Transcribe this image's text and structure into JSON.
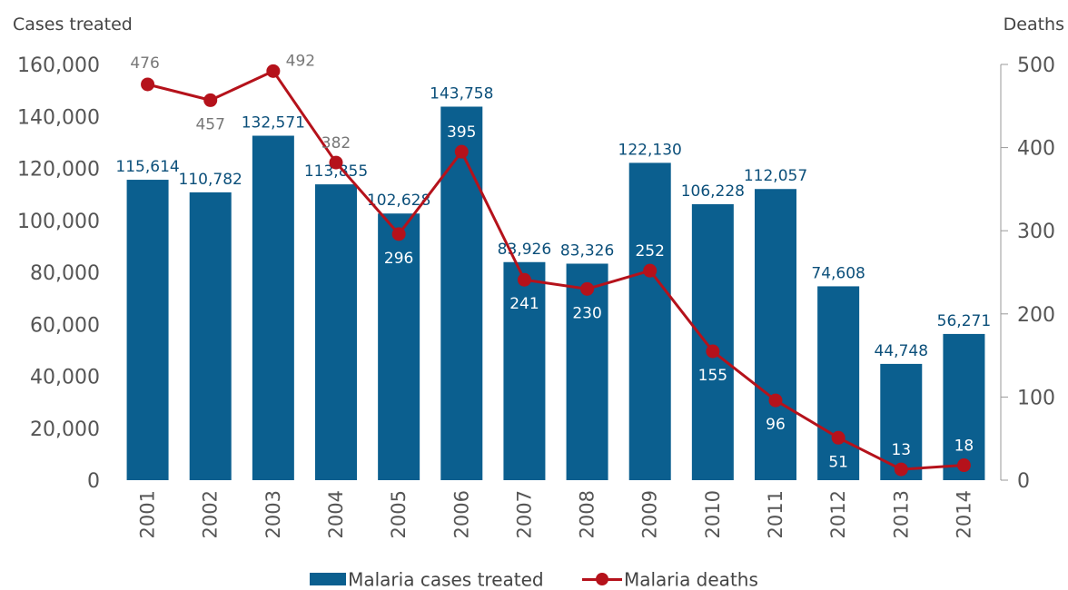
{
  "chart_data": {
    "type": "bar",
    "categories": [
      "2001",
      "2002",
      "2003",
      "2004",
      "2005",
      "2006",
      "2007",
      "2008",
      "2009",
      "2010",
      "2011",
      "2012",
      "2013",
      "2014"
    ],
    "series": [
      {
        "name": "Malaria cases treated",
        "type": "bar",
        "axis": "left",
        "values": [
          115614,
          110782,
          132571,
          113855,
          102628,
          143758,
          83926,
          83326,
          122130,
          106228,
          112057,
          74608,
          44748,
          56271
        ],
        "labels": [
          "115,614",
          "110,782",
          "132,571",
          "113,855",
          "102,628",
          "143,758",
          "83,926",
          "83,326",
          "122,130",
          "106,228",
          "112,057",
          "74,608",
          "44,748",
          "56,271"
        ]
      },
      {
        "name": "Malaria deaths",
        "type": "line",
        "axis": "right",
        "values": [
          476,
          457,
          492,
          382,
          296,
          395,
          241,
          230,
          252,
          155,
          96,
          51,
          13,
          18
        ],
        "labels": [
          "476",
          "457",
          "492",
          "382",
          "296",
          "395",
          "241",
          "230",
          "252",
          "155",
          "96",
          "51",
          "13",
          "18"
        ]
      }
    ],
    "y_left": {
      "label": "Cases treated",
      "ylim": [
        0,
        160000
      ],
      "ticks": [
        0,
        20000,
        40000,
        60000,
        80000,
        100000,
        120000,
        140000,
        160000
      ],
      "tick_labels": [
        "0",
        "20,000",
        "40,000",
        "60,000",
        "80,000",
        "100,000",
        "120,000",
        "140,000",
        "160,000"
      ]
    },
    "y_right": {
      "label": "Deaths",
      "ylim": [
        0,
        500
      ],
      "ticks": [
        0,
        100,
        200,
        300,
        400,
        500
      ],
      "tick_labels": [
        "0",
        "100",
        "200",
        "300",
        "400",
        "500"
      ]
    },
    "grid": false,
    "legend_position": "bottom",
    "colors": {
      "bar": "#0b5f8f",
      "line": "#b5121b",
      "bar_label": "#0b4f7a",
      "label_on_bar": "#ffffff",
      "label_outside": "#777777"
    }
  }
}
